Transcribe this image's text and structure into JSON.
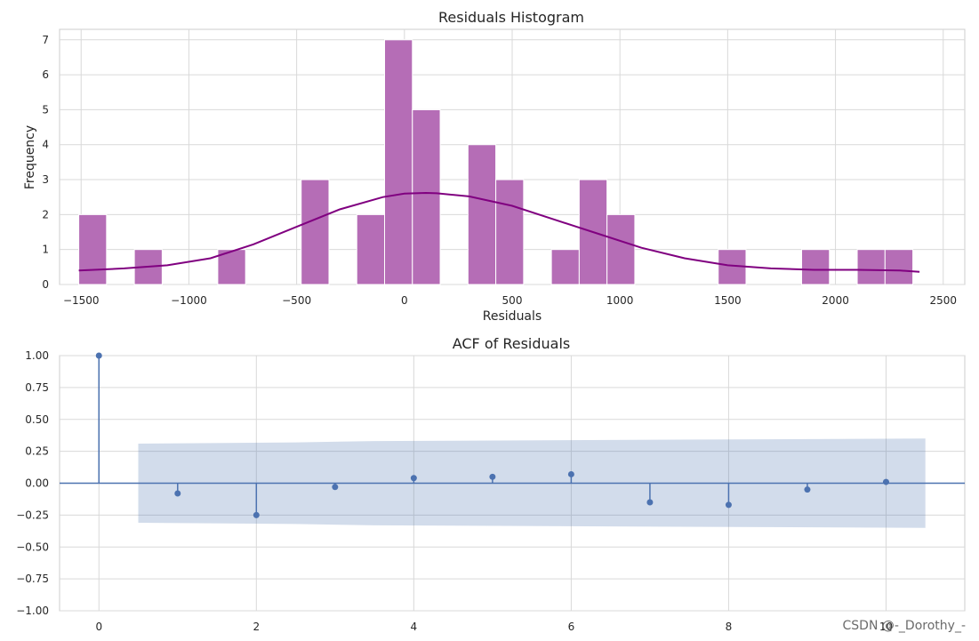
{
  "watermark": "CSDN @-_Dorothy_-",
  "chart_data": [
    {
      "type": "bar",
      "subtype": "histogram",
      "title": "Residuals Histogram",
      "xlabel": "Residuals",
      "ylabel": "Frequency",
      "xlim": [
        -1600,
        2600
      ],
      "ylim": [
        0,
        7.3
      ],
      "xticks": [
        -1500,
        -1000,
        -500,
        0,
        500,
        1000,
        1500,
        2000,
        2500
      ],
      "xtick_labels": [
        "−1500",
        "−1000",
        "−500",
        "0",
        "500",
        "1000",
        "1500",
        "2000",
        "2500"
      ],
      "yticks": [
        0,
        1,
        2,
        3,
        4,
        5,
        6,
        7
      ],
      "grid": true,
      "colors": {
        "bars": "#b56db6",
        "bar_edge": "#ffffff",
        "kde": "#800080"
      },
      "bins": [
        {
          "x0": -1511,
          "x1": -1382,
          "count": 2
        },
        {
          "x0": -1253,
          "x1": -1124,
          "count": 1
        },
        {
          "x0": -866,
          "x1": -737,
          "count": 1
        },
        {
          "x0": -479,
          "x1": -350,
          "count": 3
        },
        {
          "x0": -221,
          "x1": -92,
          "count": 2
        },
        {
          "x0": -92,
          "x1": 37,
          "count": 7
        },
        {
          "x0": 37,
          "x1": 166,
          "count": 5
        },
        {
          "x0": 295,
          "x1": 424,
          "count": 4
        },
        {
          "x0": 424,
          "x1": 553,
          "count": 3
        },
        {
          "x0": 682,
          "x1": 811,
          "count": 1
        },
        {
          "x0": 811,
          "x1": 940,
          "count": 3
        },
        {
          "x0": 940,
          "x1": 1069,
          "count": 2
        },
        {
          "x0": 1456,
          "x1": 1585,
          "count": 1
        },
        {
          "x0": 1843,
          "x1": 1972,
          "count": 1
        },
        {
          "x0": 2101,
          "x1": 2230,
          "count": 1
        },
        {
          "x0": 2230,
          "x1": 2359,
          "count": 1
        }
      ],
      "kde": {
        "x": [
          -1511,
          -1300,
          -1100,
          -900,
          -700,
          -500,
          -300,
          -100,
          0,
          100,
          150,
          300,
          500,
          700,
          900,
          1100,
          1300,
          1500,
          1700,
          1900,
          2100,
          2300,
          2390
        ],
        "y": [
          0.4,
          0.46,
          0.55,
          0.75,
          1.15,
          1.65,
          2.15,
          2.5,
          2.6,
          2.62,
          2.61,
          2.52,
          2.25,
          1.85,
          1.45,
          1.05,
          0.75,
          0.55,
          0.46,
          0.42,
          0.42,
          0.4,
          0.36
        ]
      }
    },
    {
      "type": "scatter",
      "subtype": "stem",
      "title": "ACF of Residuals",
      "xlim": [
        -0.5,
        11
      ],
      "ylim": [
        -1.0,
        1.0
      ],
      "xticks": [
        0,
        2,
        4,
        6,
        8,
        10
      ],
      "xtick_labels": [
        "0",
        "2",
        "4",
        "6",
        "8",
        "10"
      ],
      "yticks": [
        1.0,
        0.75,
        0.5,
        0.25,
        0.0,
        -0.25,
        -0.5,
        -0.75,
        -1.0
      ],
      "ytick_labels": [
        "1.00",
        "0.75",
        "0.50",
        "0.25",
        "0.00",
        "−0.25",
        "−0.50",
        "−0.75",
        "−1.00"
      ],
      "grid": true,
      "colors": {
        "stems": "#4c72b0",
        "band": "#4c72b0"
      },
      "lags": [
        0,
        1,
        2,
        3,
        4,
        5,
        6,
        7,
        8,
        9,
        10
      ],
      "acf": [
        1.0,
        -0.08,
        -0.25,
        -0.03,
        0.04,
        0.05,
        0.07,
        -0.15,
        -0.17,
        -0.05,
        0.01
      ],
      "confidence_band": {
        "x": [
          0.5,
          2.5,
          3.5,
          10.5
        ],
        "upper": [
          0.31,
          0.32,
          0.33,
          0.35
        ],
        "lower": [
          -0.31,
          -0.32,
          -0.33,
          -0.35
        ]
      }
    }
  ]
}
